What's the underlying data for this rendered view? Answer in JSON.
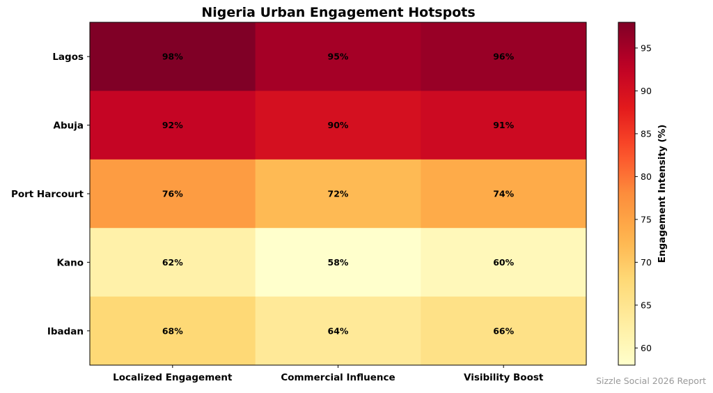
{
  "chart_data": {
    "type": "heatmap",
    "title": "Nigeria Urban Engagement Hotspots",
    "rows": [
      "Lagos",
      "Abuja",
      "Port Harcourt",
      "Kano",
      "Ibadan"
    ],
    "columns": [
      "Localized Engagement",
      "Commercial Influence",
      "Visibility Boost"
    ],
    "values": [
      [
        98,
        95,
        96
      ],
      [
        92,
        90,
        91
      ],
      [
        76,
        72,
        74
      ],
      [
        62,
        58,
        60
      ],
      [
        68,
        64,
        66
      ]
    ],
    "labels": [
      [
        "98%",
        "95%",
        "96%"
      ],
      [
        "92%",
        "90%",
        "91%"
      ],
      [
        "76%",
        "72%",
        "74%"
      ],
      [
        "62%",
        "58%",
        "60%"
      ],
      [
        "68%",
        "64%",
        "66%"
      ]
    ],
    "colormap": "YlOrRd",
    "colorbar": {
      "label": "Engagement Intensity (%)",
      "range": [
        58,
        98
      ],
      "ticks": [
        60,
        65,
        70,
        75,
        80,
        85,
        90,
        95
      ]
    },
    "source": "Sizzle Social 2026 Report"
  }
}
